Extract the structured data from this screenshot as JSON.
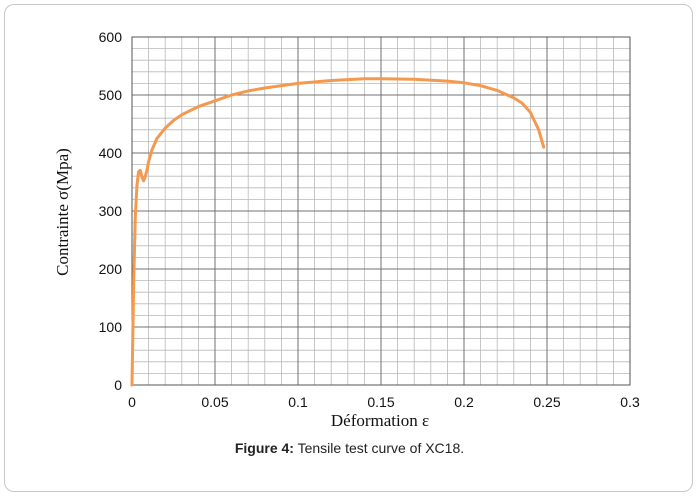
{
  "caption": {
    "label": "Figure 4:",
    "text": " Tensile test curve of XC18."
  },
  "chart_data": {
    "type": "line",
    "xlabel": "Déformation ε",
    "ylabel": "Contrainte σ(Mpa)",
    "xlim": [
      0,
      0.3
    ],
    "ylim": [
      0,
      600
    ],
    "x_ticks": [
      0,
      0.05,
      0.1,
      0.15,
      0.2,
      0.25,
      0.3
    ],
    "x_tick_labels": [
      "0",
      "0.05",
      "0.1",
      "0.15",
      "0.2",
      "0.25",
      "0.3"
    ],
    "y_ticks": [
      0,
      100,
      200,
      300,
      400,
      500,
      600
    ],
    "y_tick_labels": [
      "0",
      "100",
      "200",
      "300",
      "400",
      "500",
      "600"
    ],
    "grid": true,
    "grid_minor_x_step": 0.01,
    "grid_minor_y_step": 20,
    "line_color": "#f5994e",
    "series": [
      {
        "x": [
          0,
          0.001,
          0.002,
          0.003,
          0.004,
          0.005,
          0.006,
          0.007,
          0.008,
          0.009,
          0.01,
          0.012,
          0.015,
          0.02,
          0.025,
          0.03,
          0.04,
          0.05,
          0.06,
          0.07,
          0.08,
          0.1,
          0.12,
          0.14,
          0.15,
          0.17,
          0.19,
          0.2,
          0.21,
          0.22,
          0.23,
          0.235,
          0.24,
          0.245,
          0.248
        ],
        "y": [
          0,
          180,
          290,
          345,
          368,
          370,
          358,
          352,
          360,
          370,
          385,
          405,
          425,
          443,
          456,
          466,
          480,
          490,
          500,
          507,
          512,
          520,
          525,
          528,
          528,
          527,
          524,
          521,
          516,
          508,
          495,
          486,
          470,
          440,
          410
        ]
      }
    ]
  }
}
